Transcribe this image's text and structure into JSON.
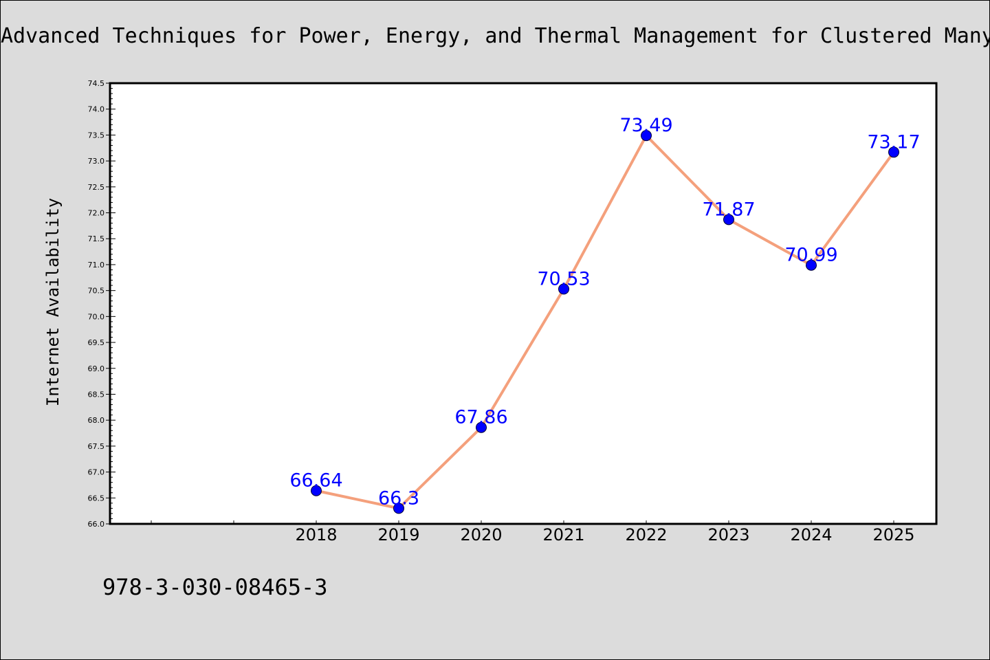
{
  "chart_data": {
    "type": "line",
    "title": "Advanced Techniques for Power, Energy, and Thermal Management for Clustered Many",
    "xlabel": "",
    "ylabel": "Internet Availability",
    "categories": [
      "2018",
      "2019",
      "2020",
      "2021",
      "2022",
      "2023",
      "2024",
      "2025"
    ],
    "series": [
      {
        "values": [
          66.64,
          66.3,
          67.86,
          70.53,
          73.49,
          71.87,
          70.99,
          73.17
        ],
        "labels": [
          "66.64",
          "66.3",
          "67.86",
          "70.53",
          "73.49",
          "71.87",
          "70.99",
          "73.17"
        ]
      }
    ],
    "ylim": [
      66.0,
      74.5
    ],
    "yticks": [
      "66.0",
      "66.5",
      "67.0",
      "67.5",
      "68.0",
      "68.5",
      "69.0",
      "69.5",
      "70.0",
      "70.5",
      "71.0",
      "71.5",
      "72.0",
      "72.5",
      "73.0",
      "73.5",
      "74.0",
      "74.5"
    ],
    "grid": false,
    "line_color": "#f4a07c",
    "marker_color": "#0000ff",
    "label_color": "#0000ff",
    "background_color": "#dcdcdc",
    "plot_background": "#ffffff"
  },
  "footer": {
    "isbn": "978-3-030-08465-3"
  }
}
